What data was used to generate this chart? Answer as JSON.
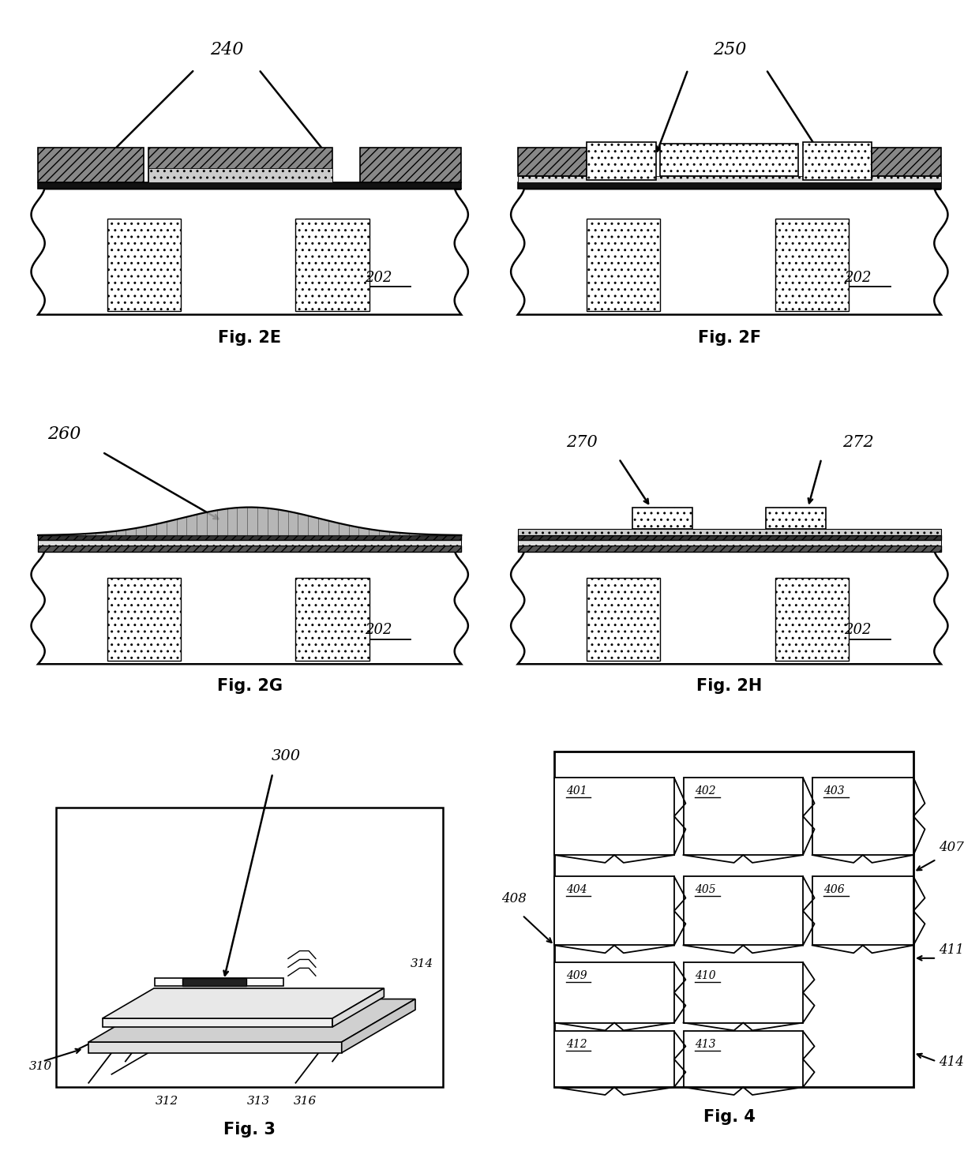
{
  "bg": "#ffffff",
  "lc": "#000000",
  "fig2E": {
    "label": "240",
    "sub": "202",
    "cap": "Fig. 2E"
  },
  "fig2F": {
    "label": "250",
    "sub": "202",
    "cap": "Fig. 2F"
  },
  "fig2G": {
    "label": "260",
    "sub": "202",
    "cap": "Fig. 2G"
  },
  "fig2H": {
    "l1": "270",
    "l2": "272",
    "sub": "202",
    "cap": "Fig. 2H"
  },
  "fig3": {
    "labels": [
      "300",
      "310",
      "312",
      "313",
      "314",
      "316"
    ],
    "cap": "Fig. 3"
  },
  "fig4": {
    "cells": [
      [
        "401",
        "402",
        "403"
      ],
      [
        "404",
        "405",
        "406"
      ],
      [
        " 409",
        " 410"
      ],
      [
        " 412",
        " 413"
      ]
    ],
    "side": [
      "407",
      "408",
      "411",
      "414"
    ],
    "cap": "Fig. 4"
  }
}
